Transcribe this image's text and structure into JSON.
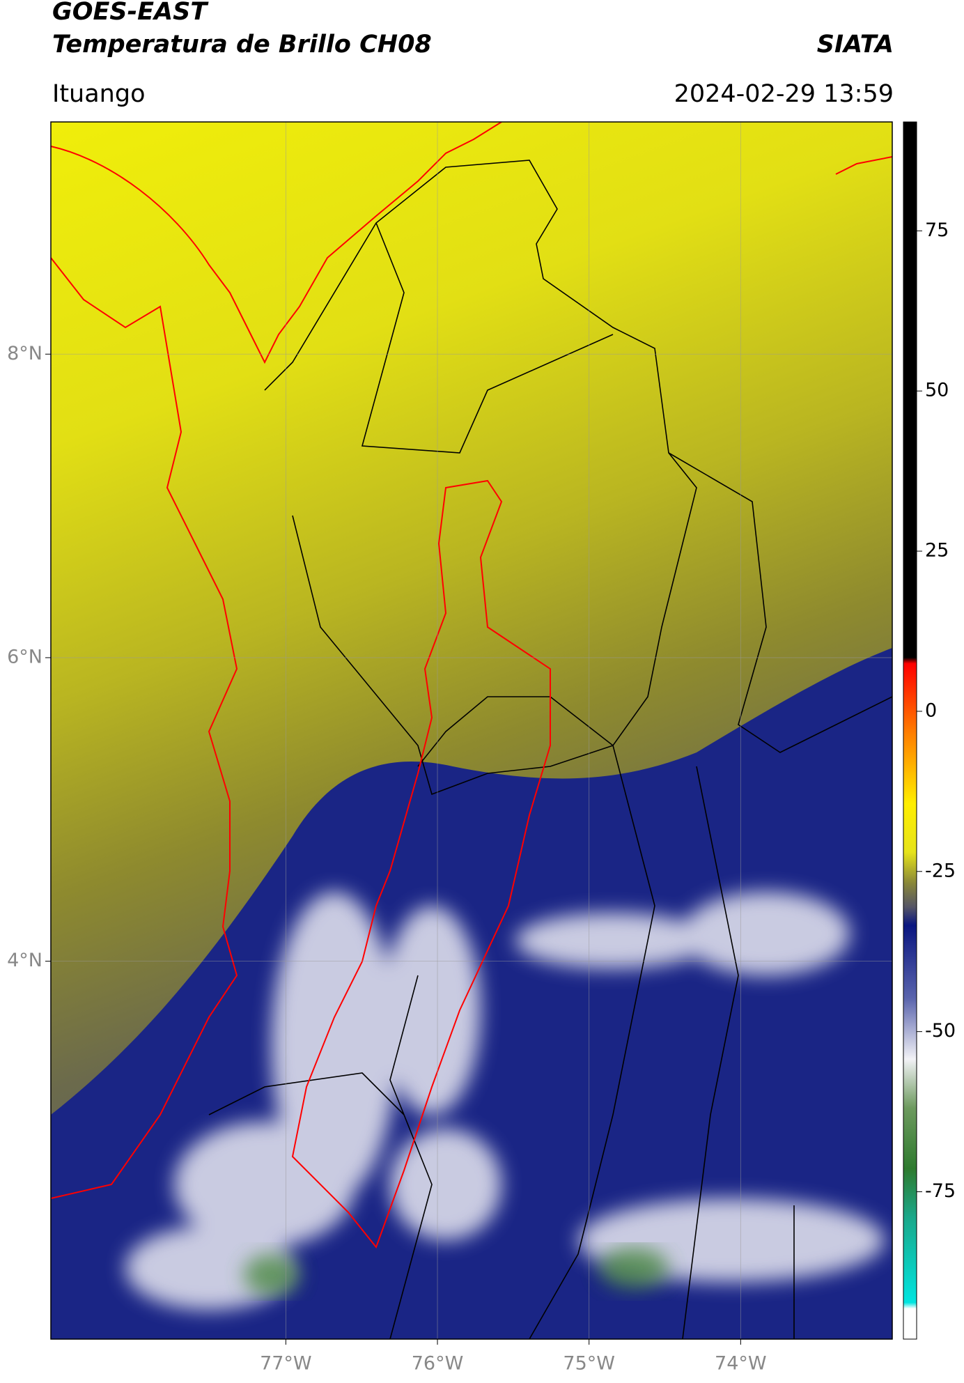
{
  "header": {
    "satellite": "GOES-EAST",
    "product": "Temperatura de Brillo CH08",
    "agency": "SIATA",
    "location": "Ituango",
    "datetime": "2024-02-29 13:59"
  },
  "map": {
    "xlim": [
      -78.55,
      -73.0
    ],
    "ylim": [
      1.51,
      9.53
    ],
    "xticks": [
      {
        "value": -77,
        "label": "77°W"
      },
      {
        "value": -76,
        "label": "76°W"
      },
      {
        "value": -75,
        "label": "75°W"
      },
      {
        "value": -74,
        "label": "74°W"
      }
    ],
    "yticks": [
      {
        "value": 8,
        "label": "8°N"
      },
      {
        "value": 6,
        "label": "6°N"
      },
      {
        "value": 4,
        "label": "4°N"
      }
    ],
    "grid": true
  },
  "colorbar": {
    "lim": [
      -98,
      92
    ],
    "ticks": [
      75,
      50,
      25,
      0,
      -25,
      -50,
      -75
    ]
  }
}
